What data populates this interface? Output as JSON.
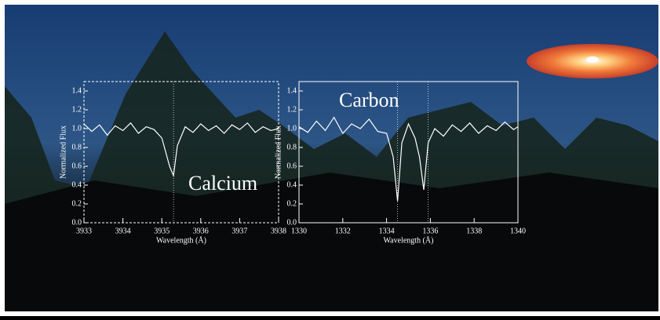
{
  "chart_data": [
    {
      "type": "line",
      "annotation": "Calcium",
      "x_label": "Wavelength (Å)",
      "y_label": "Normalized Flux",
      "xlim": [
        3933,
        3938
      ],
      "xticks": [
        3933,
        3934,
        3935,
        3936,
        3937,
        3938
      ],
      "ylim": [
        0,
        1.5
      ],
      "yticks": [
        {
          "value": 0,
          "label": "0.0"
        },
        0.2,
        0.4,
        0.6,
        0.8,
        {
          "value": 1,
          "label": "1.0"
        },
        1.2,
        1.4
      ],
      "marker_lines": [
        3935.3
      ],
      "series": [
        {
          "name": "Calcium",
          "color": "#ffffff",
          "x": [
            3933.0,
            3933.2,
            3933.4,
            3933.6,
            3933.8,
            3934.0,
            3934.2,
            3934.4,
            3934.6,
            3934.8,
            3935.0,
            3935.1,
            3935.2,
            3935.3,
            3935.4,
            3935.6,
            3935.8,
            3936.0,
            3936.2,
            3936.4,
            3936.6,
            3936.8,
            3937.0,
            3937.2,
            3937.4,
            3937.6,
            3937.8,
            3938.0
          ],
          "values": [
            1.05,
            0.97,
            1.04,
            0.93,
            1.03,
            0.98,
            1.06,
            0.95,
            1.02,
            0.99,
            0.9,
            0.75,
            0.6,
            0.5,
            0.82,
            1.02,
            0.96,
            1.05,
            0.98,
            1.03,
            0.95,
            1.04,
            0.99,
            1.06,
            0.96,
            1.02,
            0.98,
            1.0
          ]
        }
      ]
    },
    {
      "type": "line",
      "annotation": "Carbon",
      "x_label": "Wavelength (Å)",
      "y_label": "Normalized Flux",
      "xlim": [
        1330,
        1340
      ],
      "xticks": [
        1330,
        1332,
        1334,
        1336,
        1338,
        1340
      ],
      "ylim": [
        0,
        1.5
      ],
      "yticks": [
        {
          "value": 0,
          "label": "0.0"
        },
        0.2,
        0.4,
        0.6,
        0.8,
        {
          "value": 1,
          "label": "1.0"
        },
        1.2,
        1.4
      ],
      "marker_lines": [
        1334.5,
        1335.9
      ],
      "series": [
        {
          "name": "Carbon",
          "color": "#ffffff",
          "x": [
            1330.0,
            1330.4,
            1330.8,
            1331.2,
            1331.6,
            1332.0,
            1332.4,
            1332.8,
            1333.2,
            1333.6,
            1334.0,
            1334.3,
            1334.5,
            1334.7,
            1335.0,
            1335.3,
            1335.5,
            1335.7,
            1335.9,
            1336.2,
            1336.6,
            1337.0,
            1337.4,
            1337.8,
            1338.2,
            1338.6,
            1339.0,
            1339.4,
            1339.8,
            1340.0
          ],
          "values": [
            1.02,
            0.96,
            1.08,
            0.98,
            1.12,
            0.95,
            1.05,
            1.0,
            1.1,
            0.97,
            0.95,
            0.7,
            0.23,
            0.85,
            1.05,
            0.9,
            0.7,
            0.35,
            0.85,
            1.0,
            0.92,
            1.04,
            0.97,
            1.06,
            0.95,
            1.03,
            0.98,
            1.07,
            0.99,
            1.02
          ]
        }
      ]
    }
  ]
}
